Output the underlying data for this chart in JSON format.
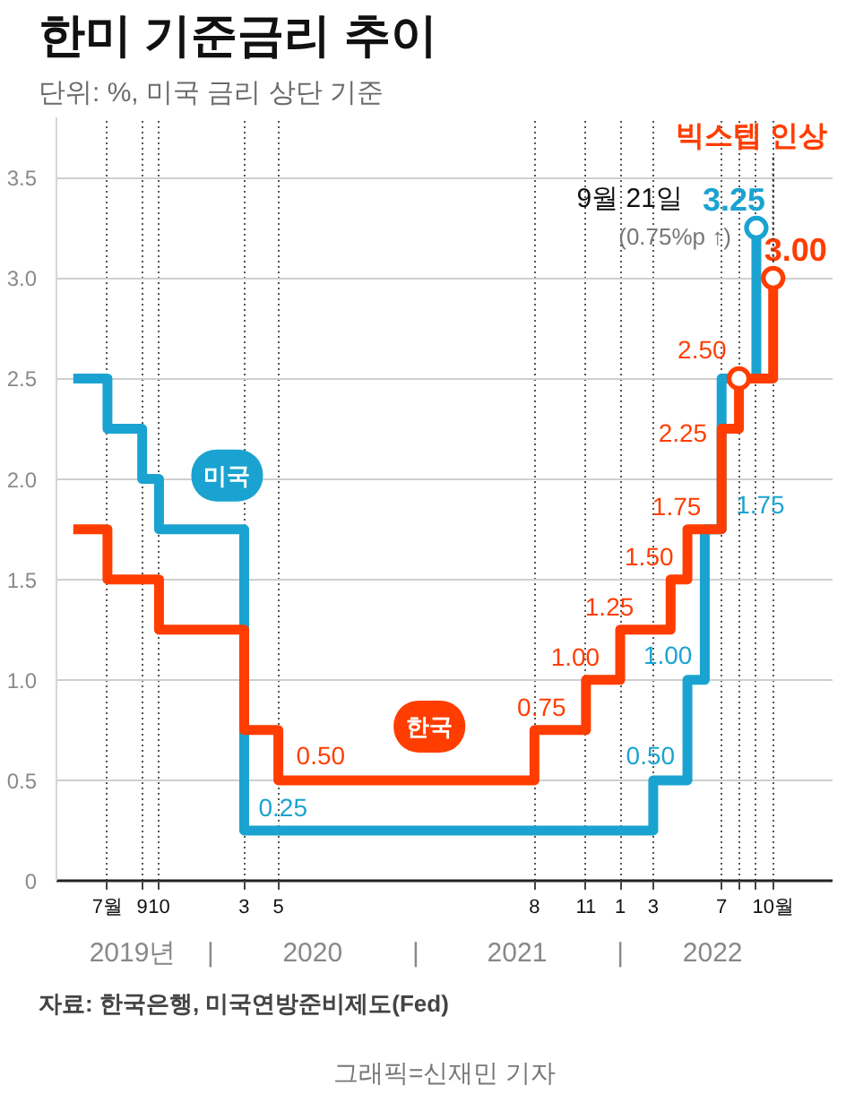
{
  "chart_data": {
    "type": "step",
    "title": "한미 기준금리 추이",
    "subtitle": "단위: %, 미국 금리 상단 기준",
    "xlim": [
      "2019-04",
      "2023-01-15"
    ],
    "xticks": [
      {
        "value": "2019-07",
        "label": "7월"
      },
      {
        "value": "2019-09",
        "label": "9"
      },
      {
        "value": "2019-10",
        "label": "10"
      },
      {
        "value": "2020-03",
        "label": "3"
      },
      {
        "value": "2020-05",
        "label": "5"
      },
      {
        "value": "2021-08",
        "label": "8"
      },
      {
        "value": "2021-11",
        "label": "11"
      },
      {
        "value": "2022-01",
        "label": "1"
      },
      {
        "value": "2022-03",
        "label": "3"
      },
      {
        "value": "2022-07",
        "label": "7"
      },
      {
        "value": "2022-08",
        "label": null
      },
      {
        "value": "2022-09",
        "label": null
      },
      {
        "value": "2022-10",
        "label": "10월"
      }
    ],
    "x2lim": [
      "2019-04",
      "2023-01-15"
    ],
    "x2ticks": [
      {
        "value": "2019-08-15",
        "label": "2019년"
      },
      {
        "value": "2020-01",
        "label": "|"
      },
      {
        "value": "2020-07",
        "label": "2020"
      },
      {
        "value": "2021-01",
        "label": "|"
      },
      {
        "value": "2021-07",
        "label": "2021"
      },
      {
        "value": "2022-01",
        "label": "|"
      },
      {
        "value": "2022-06-15",
        "label": "2022"
      }
    ],
    "ylim": [
      0,
      3.8
    ],
    "yticks": [
      0,
      0.5,
      {
        "value": 1,
        "label": "1.0"
      },
      1.5,
      {
        "value": 2,
        "label": "2.0"
      },
      2.5,
      {
        "value": 3,
        "label": "3.0"
      },
      3.5
    ],
    "grid": true,
    "series": [
      {
        "name": "미국",
        "color": "#1aa3d1",
        "x": [
          "2019-05",
          "2019-07",
          "2019-09",
          "2019-10",
          "2020-03",
          "2022-03",
          "2022-05",
          "2022-06",
          "2022-07",
          "2022-09"
        ],
        "values": [
          2.5,
          2.25,
          2.0,
          1.75,
          0.25,
          0.5,
          1.0,
          1.75,
          2.5,
          3.25
        ],
        "value_labels": [
          null,
          null,
          null,
          null,
          "0.25",
          "0.50",
          "1.00",
          "1.75",
          null,
          "3.25"
        ]
      },
      {
        "name": "한국",
        "color": "#ff3d00",
        "x": [
          "2019-05",
          "2019-07",
          "2019-10",
          "2020-03",
          "2020-05",
          "2021-08",
          "2021-11",
          "2022-01",
          "2022-04",
          "2022-05",
          "2022-07",
          "2022-08",
          "2022-10"
        ],
        "values": [
          1.75,
          1.5,
          1.25,
          0.75,
          0.5,
          0.75,
          1.0,
          1.25,
          1.5,
          1.75,
          2.25,
          2.5,
          3.0
        ],
        "value_labels": [
          null,
          null,
          null,
          null,
          "0.50",
          "0.75",
          "1.00",
          "1.25",
          "1.50",
          "1.75",
          "2.25",
          "2.50",
          "3.00"
        ]
      },
      {
        "type": "scatter",
        "marker": "circle",
        "x": [
          "2022-08",
          "2022-09",
          "2022-10"
        ],
        "values": [
          2.5,
          3.25,
          3.0
        ],
        "colors": [
          "#ff3d00",
          "#1aa3d1",
          "#ff3d00"
        ]
      }
    ],
    "annotations": [
      {
        "text": "9월 21일",
        "x": "2022-09",
        "y": 3.25
      },
      {
        "text": "(0.75%p ↑)",
        "x": "2022-09",
        "y": 3.25
      },
      {
        "text": "빅스텝 인상",
        "x": "2022-10",
        "y": 3.0
      },
      "자료: 한국은행, 미국연방준비제도(Fed)",
      "그래픽=신재민 기자"
    ]
  }
}
